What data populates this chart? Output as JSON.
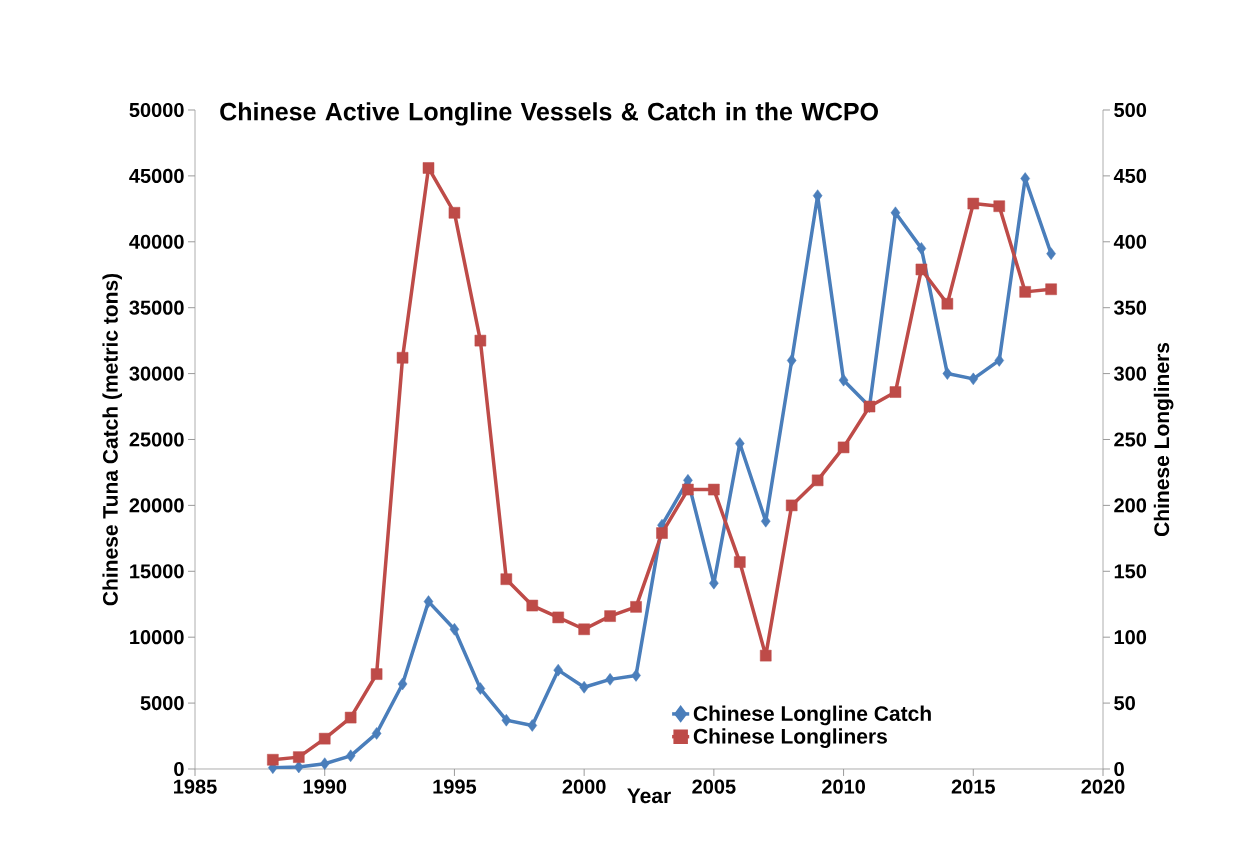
{
  "chart_data": {
    "type": "line",
    "title": "Chinese Active Longline Vessels & Catch in the WCPO",
    "xlabel": "Year",
    "ylabel": "Chinese Tuna Catch (metric tons)",
    "y2label": "Chinese Longliners",
    "x": [
      1988,
      1989,
      1990,
      1991,
      1992,
      1993,
      1994,
      1995,
      1996,
      1997,
      1998,
      1999,
      2000,
      2001,
      2002,
      2003,
      2004,
      2005,
      2006,
      2007,
      2008,
      2009,
      2010,
      2011,
      2012,
      2013,
      2014,
      2015,
      2016,
      2017,
      2018
    ],
    "series": [
      {
        "name": "Chinese Longline Catch",
        "color": "#4a7ebb",
        "marker": "diamond",
        "values": [
          100,
          150,
          400,
          1000,
          2700,
          6450,
          12700,
          10600,
          6100,
          3700,
          3300,
          7500,
          6200,
          6800,
          7100,
          18500,
          21900,
          14100,
          24700,
          18800,
          31000,
          43500,
          29500,
          27500,
          42200,
          39500,
          30000,
          29600,
          31000,
          44800,
          39100
        ]
      },
      {
        "name": "Chinese Longliners",
        "color": "#be4b48",
        "marker": "square",
        "axis": "y2",
        "values": [
          7,
          9,
          23,
          39,
          72,
          312,
          456,
          422,
          325,
          144,
          124,
          115,
          106,
          116,
          123,
          179,
          212,
          212,
          157,
          86,
          200,
          219,
          244,
          275,
          286,
          379,
          353,
          429,
          427,
          362,
          364
        ]
      }
    ],
    "xlim": [
      1985,
      2020
    ],
    "xticks": [
      1985,
      1990,
      1995,
      2000,
      2005,
      2010,
      2015,
      2020
    ],
    "ylim": [
      0,
      50000
    ],
    "yticks": [
      0,
      5000,
      10000,
      15000,
      20000,
      25000,
      30000,
      35000,
      40000,
      45000,
      50000
    ],
    "y2lim": [
      0,
      500
    ],
    "y2ticks": [
      0,
      50,
      100,
      150,
      200,
      250,
      300,
      350,
      400,
      450,
      500
    ],
    "grid": false,
    "legend": "bottom right"
  }
}
